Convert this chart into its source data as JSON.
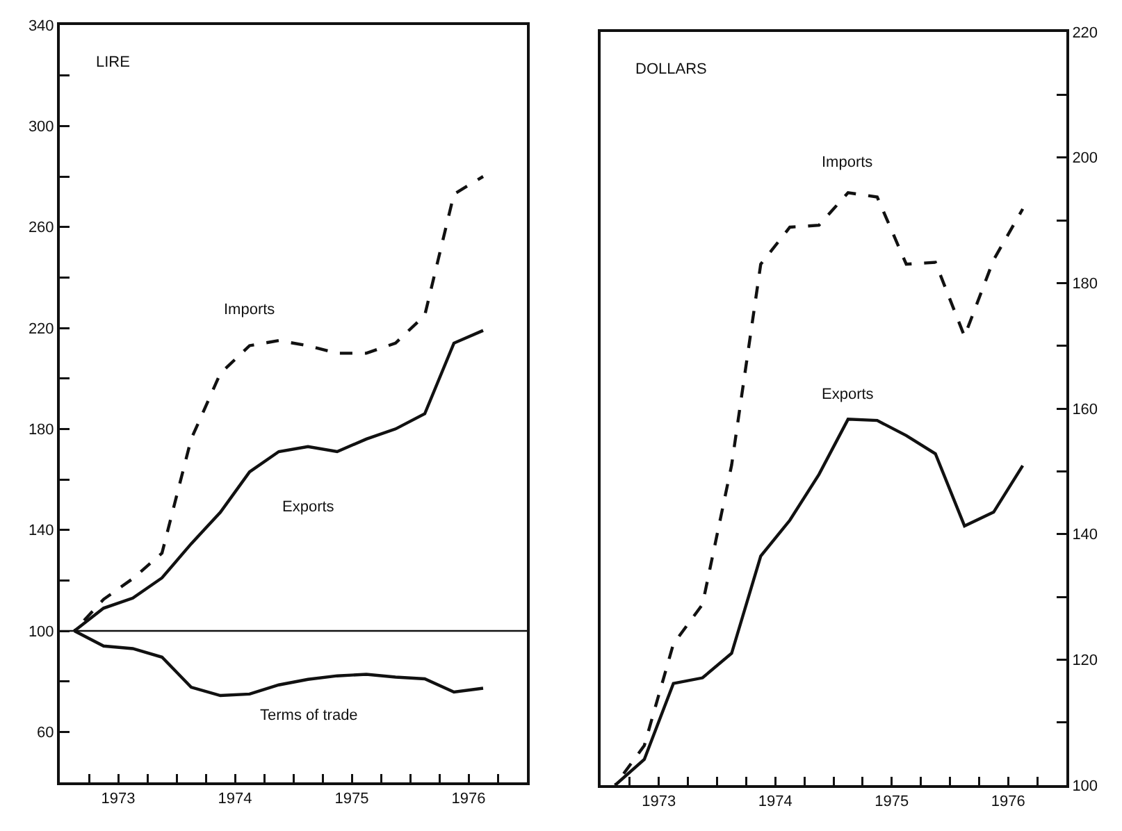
{
  "chart_data": [
    {
      "type": "line",
      "title": "LIRE",
      "x": [
        1973.125,
        1973.375,
        1973.625,
        1973.875,
        1974.125,
        1974.375,
        1974.625,
        1974.875,
        1975.125,
        1975.375,
        1975.625,
        1975.875,
        1976.125,
        1976.375,
        1976.625
      ],
      "series": [
        {
          "name": "Imports",
          "color": "#111111",
          "line_style": "dashed",
          "values": [
            100,
            112.5,
            120.7,
            130.8,
            176,
            202,
            213,
            215,
            213,
            210,
            210,
            214,
            225,
            273,
            280
          ]
        },
        {
          "name": "Exports",
          "color": "#111111",
          "line_style": "solid",
          "values": [
            100,
            109,
            113,
            121,
            134.5,
            147,
            163,
            171,
            173,
            171,
            176,
            180,
            186,
            214,
            219
          ]
        },
        {
          "name": "Terms of trade",
          "color": "#111111",
          "line_style": "solid",
          "values": [
            100,
            94,
            93,
            89.6,
            77.7,
            74.4,
            75,
            78.6,
            80.8,
            82.2,
            82.8,
            81.7,
            81,
            75.8,
            77.3
          ]
        }
      ],
      "ref_lines": [
        {
          "axis": "y",
          "value": 100,
          "color": "#111111"
        }
      ],
      "xlim": [
        1973,
        1977
      ],
      "xticks": [
        {
          "value": 1973,
          "label": null
        },
        {
          "value": 1973.25,
          "label": null
        },
        {
          "value": 1973.5,
          "label": "1973"
        },
        {
          "value": 1973.75,
          "label": null
        },
        {
          "value": 1974,
          "label": null
        },
        {
          "value": 1974.25,
          "label": null
        },
        {
          "value": 1974.5,
          "label": "1974"
        },
        {
          "value": 1974.75,
          "label": null
        },
        {
          "value": 1975,
          "label": null
        },
        {
          "value": 1975.25,
          "label": null
        },
        {
          "value": 1975.5,
          "label": "1975"
        },
        {
          "value": 1975.75,
          "label": null
        },
        {
          "value": 1976,
          "label": null
        },
        {
          "value": 1976.25,
          "label": null
        },
        {
          "value": 1976.5,
          "label": "1976"
        },
        {
          "value": 1976.75,
          "label": null
        },
        {
          "value": 1977,
          "label": null
        }
      ],
      "ylim": [
        40,
        340
      ],
      "yticks": [
        60,
        {
          "value": 80,
          "label": null
        },
        100,
        {
          "value": 120,
          "label": null
        },
        140,
        {
          "value": 160,
          "label": null
        },
        180,
        {
          "value": 200,
          "label": null
        },
        220,
        {
          "value": 240,
          "label": null
        },
        260,
        {
          "value": 280,
          "label": null
        },
        300,
        {
          "value": 320,
          "label": null
        },
        340
      ],
      "grid": false,
      "legend": false,
      "marker": "none"
    },
    {
      "type": "line",
      "title": "DOLLARS",
      "x": [
        1973.125,
        1973.375,
        1973.625,
        1973.875,
        1974.125,
        1974.375,
        1974.625,
        1974.875,
        1975.125,
        1975.375,
        1975.625,
        1975.875,
        1976.125,
        1976.375,
        1976.625
      ],
      "series": [
        {
          "name": "Imports",
          "color": "#111111",
          "line_style": "dashed",
          "values": [
            100,
            106.3,
            122.5,
            128.8,
            151,
            183,
            188.9,
            189.2,
            194.4,
            193.7,
            183,
            183.3,
            171.5,
            183.7,
            191.8
          ]
        },
        {
          "name": "Exports",
          "color": "#111111",
          "line_style": "solid",
          "values": [
            100,
            104.1,
            116.2,
            117.1,
            121,
            136.5,
            142.2,
            149.5,
            158.3,
            158.1,
            155.7,
            152.8,
            141.3,
            143.5,
            150.9
          ]
        }
      ],
      "xlim": [
        1973,
        1977
      ],
      "xticks": [
        {
          "value": 1973,
          "label": null
        },
        {
          "value": 1973.25,
          "label": null
        },
        {
          "value": 1973.5,
          "label": "1973"
        },
        {
          "value": 1973.75,
          "label": null
        },
        {
          "value": 1974,
          "label": null
        },
        {
          "value": 1974.25,
          "label": null
        },
        {
          "value": 1974.5,
          "label": "1974"
        },
        {
          "value": 1974.75,
          "label": null
        },
        {
          "value": 1975,
          "label": null
        },
        {
          "value": 1975.25,
          "label": null
        },
        {
          "value": 1975.5,
          "label": "1975"
        },
        {
          "value": 1975.75,
          "label": null
        },
        {
          "value": 1976,
          "label": null
        },
        {
          "value": 1976.25,
          "label": null
        },
        {
          "value": 1976.5,
          "label": "1976"
        },
        {
          "value": 1976.75,
          "label": null
        },
        {
          "value": 1977,
          "label": null
        }
      ],
      "ylim": [
        100,
        220
      ],
      "yticks": [
        100,
        {
          "value": 110,
          "label": null
        },
        120,
        {
          "value": 130,
          "label": null
        },
        140,
        {
          "value": 150,
          "label": null
        },
        160,
        {
          "value": 170,
          "label": null
        },
        180,
        {
          "value": 190,
          "label": null
        },
        200,
        {
          "value": 210,
          "label": null
        },
        220
      ],
      "grid": false,
      "legend": false,
      "marker": "none"
    }
  ]
}
